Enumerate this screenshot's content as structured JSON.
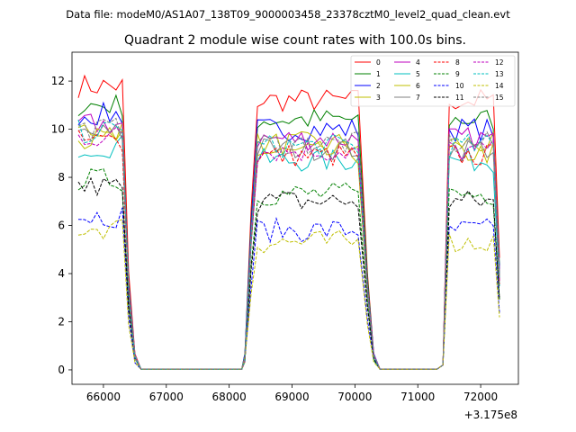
{
  "figure": {
    "suptitle": "Data file: modeM0/AS1A07_138T09_9000003458_23378cztM0_level2_quad_clean.evt"
  },
  "chart_data": {
    "type": "line",
    "title": "Quadrant 2 module wise count rates with 100.0s bins.",
    "xlabel": "",
    "ylabel": "",
    "x_offset_label": "+3.175e8",
    "xlim": [
      65500,
      72600
    ],
    "ylim": [
      -0.6,
      13.2
    ],
    "x_ticks": [
      66000,
      67000,
      68000,
      69000,
      70000,
      71000,
      72000
    ],
    "x_tick_labels": [
      "66000",
      "67000",
      "68000",
      "69000",
      "70000",
      "71000",
      "72000"
    ],
    "y_ticks": [
      0,
      2,
      4,
      6,
      8,
      10,
      12
    ],
    "y_tick_labels": [
      "0",
      "2",
      "4",
      "6",
      "8",
      "10",
      "12"
    ],
    "grid": false,
    "legend_position": "top-right",
    "legend_columns": 4,
    "segments": [
      {
        "start": 65600,
        "end_high": 66300,
        "decay": [
          66400,
          66500
        ],
        "low_end": 68250
      },
      {
        "start": 68250,
        "end_high": 70100,
        "decay": [
          70200,
          70300
        ],
        "low_end": 71400
      },
      {
        "start": 71400,
        "end_high": 72200,
        "decay": [
          72300
        ],
        "low_end": null
      }
    ],
    "series": [
      {
        "name": "0",
        "color": "#ff0000",
        "dash": "solid",
        "level": 11.2
      },
      {
        "name": "1",
        "color": "#008000",
        "dash": "solid",
        "level": 10.4
      },
      {
        "name": "2",
        "color": "#0000ff",
        "dash": "solid",
        "level": 10.0
      },
      {
        "name": "3",
        "color": "#bfbf00",
        "dash": "solid",
        "level": 9.4
      },
      {
        "name": "4",
        "color": "#bf00bf",
        "dash": "solid",
        "level": 9.6
      },
      {
        "name": "5",
        "color": "#00bfbf",
        "dash": "solid",
        "level": 8.7
      },
      {
        "name": "6",
        "color": "#bfbf00",
        "dash": "solid",
        "level": 9.0
      },
      {
        "name": "7",
        "color": "#808080",
        "dash": "solid",
        "level": 9.2
      },
      {
        "name": "8",
        "color": "#ff0000",
        "dash": "dashed",
        "level": 8.9
      },
      {
        "name": "9",
        "color": "#008000",
        "dash": "dashed",
        "level": 7.3
      },
      {
        "name": "10",
        "color": "#0000ff",
        "dash": "dashed",
        "level": 5.8
      },
      {
        "name": "11",
        "color": "#000000",
        "dash": "dashed",
        "level": 7.0
      },
      {
        "name": "12",
        "color": "#bf00bf",
        "dash": "dashed",
        "level": 9.1
      },
      {
        "name": "13",
        "color": "#00bfbf",
        "dash": "dashed",
        "level": 9.3
      },
      {
        "name": "14",
        "color": "#bfbf00",
        "dash": "dashed",
        "level": 5.3
      },
      {
        "name": "15",
        "color": "#808080",
        "dash": "dashed",
        "level": 9.4
      }
    ]
  }
}
